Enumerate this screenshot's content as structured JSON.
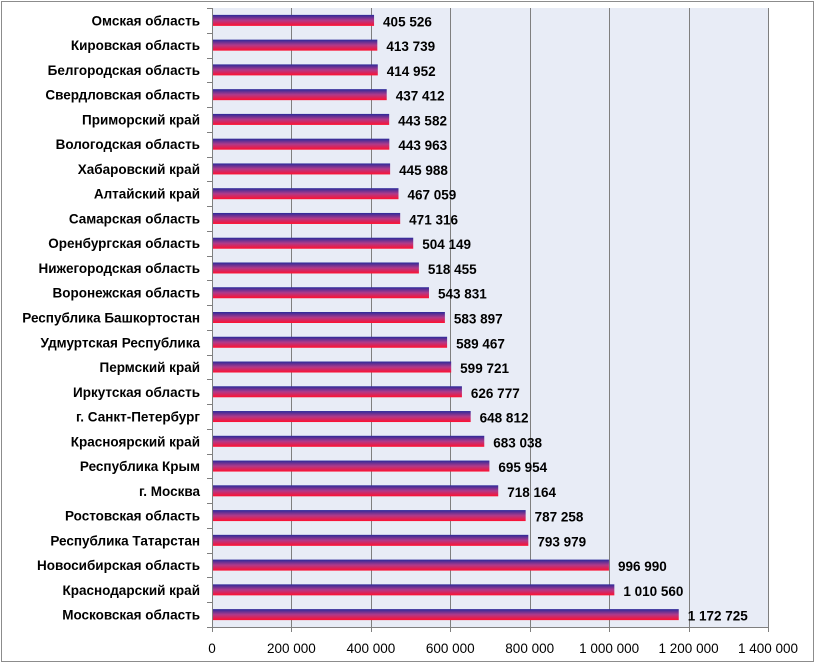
{
  "chart_data": {
    "type": "bar",
    "orientation": "horizontal",
    "categories": [
      "Омская область",
      "Кировская область",
      "Белгородская область",
      "Свердловская область",
      "Приморский край",
      "Вологодская область",
      "Хабаровский край",
      "Алтайский край",
      "Самарская область",
      "Оренбургская область",
      "Нижегородская область",
      "Воронежская область",
      "Республика Башкортостан",
      "Удмуртская Республика",
      "Пермский край",
      "Иркутская область",
      "г. Санкт-Петербург",
      "Красноярский край",
      "Республика Крым",
      "г. Москва",
      "Ростовская область",
      "Республика Татарстан",
      "Новосибирская область",
      "Краснодарский край",
      "Московская область"
    ],
    "values": [
      405526,
      413739,
      414952,
      437412,
      443582,
      443963,
      445988,
      467059,
      471316,
      504149,
      518455,
      543831,
      583897,
      589467,
      599721,
      626777,
      648812,
      683038,
      695954,
      718164,
      787258,
      793979,
      996990,
      1010560,
      1172725
    ],
    "value_labels": [
      "405 526",
      "413 739",
      "414 952",
      "437 412",
      "443 582",
      "443 963",
      "445 988",
      "467 059",
      "471 316",
      "504 149",
      "518 455",
      "543 831",
      "583 897",
      "589 467",
      "599 721",
      "626 777",
      "648 812",
      "683 038",
      "695 954",
      "718 164",
      "787 258",
      "793 979",
      "996 990",
      "1 010 560",
      "1 172 725"
    ],
    "xlim": [
      0,
      1400000
    ],
    "x_ticks": [
      0,
      200000,
      400000,
      600000,
      800000,
      1000000,
      1200000,
      1400000
    ],
    "x_tick_labels": [
      "0",
      "200 000",
      "400 000",
      "600 000",
      "800 000",
      "1 000 000",
      "1 200 000",
      "1 400 000"
    ],
    "grid": "vertical",
    "legend": "none",
    "title": "",
    "xlabel": "",
    "ylabel": "",
    "colors": {
      "bar_top": "#2a2a9a",
      "bar_mid": "#b03a8a",
      "bar_bottom": "#ff1030",
      "plot_background": "#e8ecf6",
      "gridline": "#7f7f7f",
      "frame": "#8c8c8c"
    }
  }
}
